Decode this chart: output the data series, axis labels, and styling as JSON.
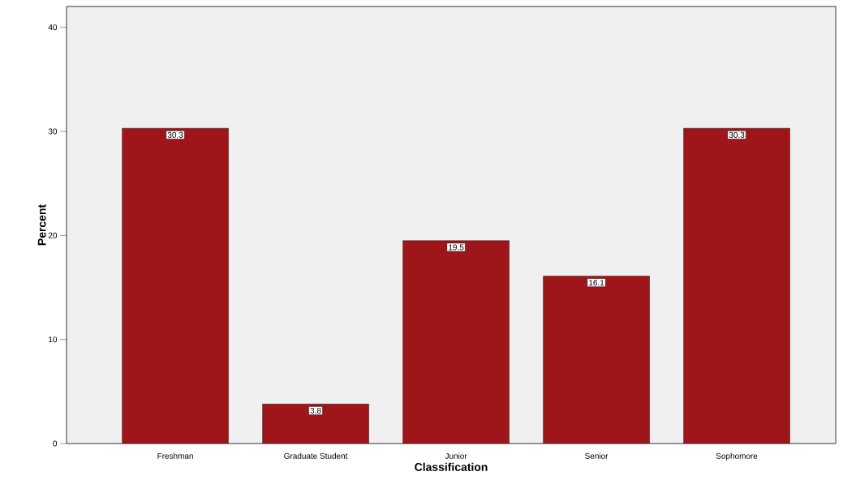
{
  "chart_data": {
    "type": "bar",
    "xlabel": "Classification",
    "ylabel": "Percent",
    "categories": [
      "Freshman",
      "Graduate Student",
      "Junior",
      "Senior",
      "Sophomore"
    ],
    "values": [
      30.3,
      3.8,
      19.5,
      16.1,
      30.3
    ],
    "color": "#9e1619",
    "ylim": [
      0,
      42
    ],
    "yticks": [
      0,
      10,
      20,
      30,
      40
    ],
    "grid": false,
    "data_labels": true
  }
}
